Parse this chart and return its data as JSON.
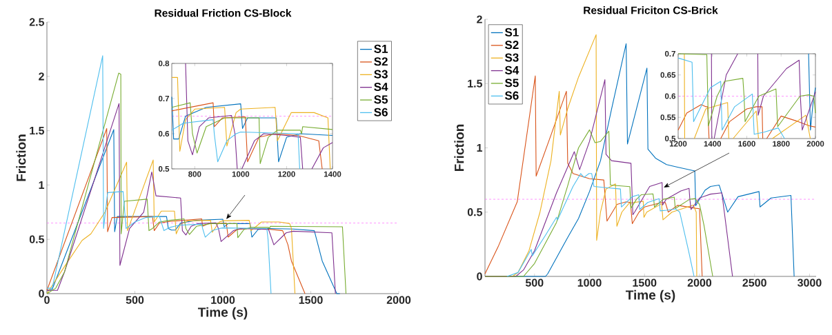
{
  "chart_data": [
    {
      "type": "line",
      "title": "Residual Friction CS-Block",
      "xlabel": "Time (s)",
      "ylabel": "Friction",
      "xlim": [
        0,
        2000
      ],
      "ylim": [
        0,
        2.5
      ],
      "xticks": [
        0,
        500,
        1000,
        1500,
        2000
      ],
      "yticks": [
        0,
        0.5,
        1,
        1.5,
        2,
        2.5
      ],
      "legend": "top right",
      "marker": "none",
      "line_style": "solid",
      "ref_lines": [
        {
          "axis": "y",
          "value": 0.65,
          "color": "#ff66ff",
          "line_style": "dashed"
        }
      ],
      "series": [
        {
          "name": "S1",
          "color": "#0072bd",
          "x": [
            0,
            30,
            380,
            385,
            400,
            680,
            690,
            708,
            730,
            760,
            850,
            1000,
            1008,
            1030,
            1155,
            1165,
            1200,
            1260,
            1400,
            1520,
            1565,
            1648,
            1665
          ],
          "values": [
            0.03,
            0.04,
            1.51,
            0.57,
            0.71,
            0.71,
            0.6,
            0.585,
            0.585,
            0.65,
            0.675,
            0.685,
            0.615,
            0.645,
            0.645,
            0.52,
            0.59,
            0.6,
            0.595,
            0.58,
            0.3,
            0,
            0
          ]
        },
        {
          "name": "S2",
          "color": "#d95319",
          "x": [
            0,
            340,
            345,
            370,
            600,
            610,
            640,
            700,
            880,
            885,
            920,
            1020,
            1030,
            1080,
            1150,
            1250,
            1340,
            1370,
            1390,
            1467
          ],
          "values": [
            0.03,
            1.52,
            0.57,
            0.7,
            0.71,
            0.58,
            0.65,
            0.665,
            0.688,
            0.62,
            0.645,
            0.648,
            0.52,
            0.59,
            0.6,
            0.595,
            0.58,
            0.45,
            0.3,
            0
          ]
        },
        {
          "name": "S3",
          "color": "#edb120",
          "x": [
            0,
            100,
            200,
            250,
            330,
            453,
            458,
            604,
            610,
            650,
            725,
            735,
            760,
            800,
            930,
            940,
            980,
            1000,
            1150,
            1160,
            1220,
            1320,
            1380,
            1390,
            1410
          ],
          "values": [
            0,
            0.25,
            0.49,
            0.55,
            0.75,
            1.21,
            0.58,
            1.23,
            0.66,
            0.76,
            0.76,
            0.55,
            0.64,
            0.67,
            0.675,
            0.565,
            0.66,
            0.67,
            0.675,
            0.58,
            0.66,
            0.66,
            0.645,
            0.6,
            0
          ]
        },
        {
          "name": "S4",
          "color": "#7e2f8e",
          "x": [
            0,
            60,
            100,
            410,
            415,
            470,
            550,
            596,
            620,
            760,
            770,
            790,
            820,
            860,
            960,
            975,
            990,
            1060,
            1100,
            1200,
            1260,
            1290,
            1360,
            1400,
            1620,
            1640
          ],
          "values": [
            0.03,
            0.03,
            0.2,
            1.75,
            0.26,
            0.6,
            0.75,
            1.12,
            0.9,
            0.88,
            0.58,
            0.54,
            0.62,
            0.645,
            0.652,
            0.6,
            0.48,
            0.58,
            0.6,
            0.595,
            0.59,
            0.45,
            0.56,
            0.575,
            0.56,
            0
          ]
        },
        {
          "name": "S5",
          "color": "#77ac30",
          "x": [
            0,
            50,
            100,
            408,
            420,
            422,
            440,
            570,
            580,
            600,
            640,
            700,
            780,
            790,
            810,
            850,
            930,
            1080,
            1085,
            1120,
            1160,
            1260,
            1265,
            1270,
            1680,
            1700
          ],
          "values": [
            0,
            0.05,
            0.2,
            2.03,
            2.02,
            0.55,
            0.85,
            0.87,
            0.58,
            0.6,
            0.66,
            0.675,
            0.688,
            0.6,
            0.545,
            0.62,
            0.645,
            0.645,
            0.515,
            0.59,
            0.61,
            0.61,
            0.6,
            0.62,
            0.615,
            0
          ]
        },
        {
          "name": "S6",
          "color": "#4dbeee",
          "x": [
            0,
            30,
            317,
            322,
            345,
            433,
            450,
            500,
            560,
            640,
            665,
            700,
            750,
            880,
            885,
            900,
            940,
            980,
            1000,
            1250,
            1257,
            1274
          ],
          "values": [
            0.05,
            0.05,
            2.19,
            0.6,
            0.93,
            0.94,
            0.6,
            0.66,
            0.7,
            0.71,
            0.58,
            0.61,
            0.63,
            0.64,
            0.6,
            0.52,
            0.58,
            0.6,
            0.605,
            0.6,
            0.5,
            0
          ]
        }
      ]
    },
    {
      "type": "line",
      "xlim": [
        700,
        1400
      ],
      "ylim": [
        0.5,
        0.8
      ],
      "xticks": [
        800,
        1000,
        1200,
        1400
      ],
      "yticks": [
        0.5,
        0.6,
        0.7,
        0.8
      ],
      "marker": "none",
      "line_style": "solid",
      "ref_lines": [
        {
          "axis": "y",
          "value": 0.65,
          "color": "#ff66ff",
          "line_style": "dashed"
        }
      ],
      "series": [
        {
          "color": "#0072bd",
          "x": [
            700,
            708,
            730,
            760,
            850,
            1000,
            1008,
            1030,
            1155,
            1165,
            1200,
            1260,
            1400
          ],
          "values": [
            0.705,
            0.585,
            0.585,
            0.65,
            0.675,
            0.685,
            0.615,
            0.645,
            0.645,
            0.52,
            0.59,
            0.6,
            0.595
          ]
        },
        {
          "color": "#d95319",
          "x": [
            700,
            880,
            885,
            920,
            1020,
            1030,
            1080,
            1150,
            1250,
            1340,
            1355
          ],
          "values": [
            0.665,
            0.688,
            0.62,
            0.645,
            0.648,
            0.52,
            0.59,
            0.6,
            0.595,
            0.58,
            0.5
          ]
        },
        {
          "color": "#edb120",
          "x": [
            700,
            725,
            735,
            760,
            800,
            930,
            940,
            980,
            1000,
            1150,
            1160,
            1220,
            1320,
            1380,
            1390
          ],
          "values": [
            0.76,
            0.76,
            0.55,
            0.64,
            0.67,
            0.675,
            0.565,
            0.66,
            0.67,
            0.675,
            0.58,
            0.66,
            0.66,
            0.645,
            0.5
          ]
        },
        {
          "color": "#7e2f8e",
          "x": [
            760,
            770,
            780,
            790,
            820,
            860,
            960,
            975,
            985,
            995,
            1005,
            1060,
            1100,
            1200,
            1260,
            1270,
            1290,
            1310,
            1360,
            1400
          ],
          "values": [
            0.8,
            0.58,
            0.56,
            0.54,
            0.62,
            0.645,
            0.652,
            0.6,
            0.5,
            null,
            0.5,
            0.58,
            0.6,
            0.595,
            0.59,
            0.5,
            null,
            0.5,
            0.56,
            0.575
          ]
        },
        {
          "color": "#77ac30",
          "x": [
            700,
            780,
            790,
            810,
            850,
            930,
            1080,
            1085,
            1120,
            1160,
            1260,
            1265,
            1270,
            1400
          ],
          "values": [
            0.675,
            0.688,
            0.6,
            0.545,
            0.62,
            0.645,
            0.645,
            0.515,
            0.59,
            0.61,
            0.61,
            0.6,
            0.62,
            0.612
          ]
        },
        {
          "color": "#4dbeee",
          "x": [
            700,
            750,
            880,
            885,
            900,
            940,
            980,
            1000,
            1250,
            1257
          ],
          "values": [
            0.61,
            0.63,
            0.64,
            0.6,
            0.52,
            0.58,
            0.6,
            0.605,
            0.6,
            0.5
          ]
        }
      ]
    },
    {
      "type": "line",
      "title": "Residual Friciton CS-Brick",
      "xlabel": "Time (s)",
      "ylabel": "Friction",
      "xlim": [
        50,
        3060
      ],
      "ylim": [
        0,
        2
      ],
      "xticks": [
        500,
        1000,
        1500,
        2000,
        2500,
        3000
      ],
      "yticks": [
        0,
        0.5,
        1,
        1.5,
        2
      ],
      "legend": "top left",
      "marker": "none",
      "line_style": "solid",
      "ref_lines": [
        {
          "axis": "y",
          "value": 0.6,
          "color": "#ff66ff",
          "line_style": "dashed"
        }
      ],
      "series": [
        {
          "name": "S1",
          "color": "#0072bd",
          "x": [
            50,
            600,
            620,
            800,
            900,
            1000,
            1100,
            1200,
            1333,
            1345,
            1522,
            1531,
            1600,
            1700,
            1800,
            1957,
            1965,
            2000,
            2050,
            2100,
            2179,
            2256,
            2350,
            2541,
            2550,
            2650,
            2831,
            2860
          ],
          "values": [
            0,
            0,
            0.02,
            0.3,
            0.45,
            0.66,
            0.9,
            1.3,
            1.81,
            1.03,
            1.62,
            0.99,
            0.92,
            0.87,
            0.85,
            0.82,
            0.55,
            0.6,
            0.67,
            0.7,
            0.71,
            0.5,
            0.62,
            0.66,
            0.54,
            0.61,
            0.63,
            0
          ]
        },
        {
          "name": "S2",
          "color": "#d95319",
          "x": [
            50,
            169,
            343,
            507,
            515,
            650,
            790,
            802,
            850,
            1000,
            1130,
            1159,
            1250,
            1334,
            1372,
            1389,
            1450,
            1500,
            1655,
            1689,
            1716,
            1800,
            1964,
            2000,
            2024
          ],
          "values": [
            0.02,
            0.23,
            0.58,
            1.56,
            0.78,
            1.1,
            1.44,
            0.88,
            0.8,
            0.76,
            0.75,
            0.43,
            0.56,
            0.58,
            0.575,
            0.41,
            0.5,
            0.54,
            0.575,
            0.575,
            0.5,
            0.553,
            0.53,
            0.527,
            0
          ]
        },
        {
          "name": "S3",
          "color": "#edb120",
          "x": [
            50,
            300,
            350,
            450,
            550,
            650,
            725,
            735,
            800,
            900,
            1060,
            1065,
            1100,
            1150,
            1236,
            1249,
            1294,
            1361,
            1488,
            1495,
            1520,
            1655,
            1668,
            1749,
            1944,
            1970,
            1975
          ],
          "values": [
            0,
            0,
            0.03,
            0.2,
            0.5,
            0.9,
            1.44,
            1.1,
            1.3,
            1.55,
            1.88,
            0.28,
            0.5,
            0.68,
            0.72,
            0.39,
            0.5,
            0.57,
            0.585,
            0.46,
            0.5,
            0.565,
            0.44,
            0.5,
            0.555,
            0.5,
            0
          ]
        },
        {
          "name": "S4",
          "color": "#7e2f8e",
          "x": [
            50,
            330,
            400,
            500,
            700,
            862,
            910,
            1000,
            1140,
            1150,
            1200,
            1377,
            1394,
            1410,
            1547,
            1660,
            1664,
            1697,
            1831,
            1905,
            1912,
            1923,
            2000,
            2100,
            2203,
            2300
          ],
          "values": [
            0,
            0,
            0.05,
            0.2,
            0.65,
            0.97,
            0.83,
            1.05,
            1.53,
            0.95,
            0.9,
            0.88,
            0.48,
            0.5,
            0.7,
            0.73,
            0.555,
            0.6,
            0.665,
            0.685,
            0.6,
            0.52,
            0.61,
            0.64,
            0.65,
            0
          ]
        },
        {
          "name": "S5",
          "color": "#77ac30",
          "x": [
            50,
            400,
            500,
            700,
            800,
            900,
            1000,
            1050,
            1100,
            1176,
            1190,
            1367,
            1376,
            1427,
            1470,
            1577,
            1584,
            1590,
            1670,
            1770,
            1780,
            1910,
            1960,
            2000,
            2040,
            2120
          ],
          "values": [
            0,
            0,
            0.1,
            0.42,
            0.7,
            1.0,
            1.14,
            1.04,
            1.05,
            1.13,
            0.71,
            0.698,
            0.53,
            0.6,
            0.635,
            0.642,
            0.6,
            0.54,
            0.6,
            0.617,
            0.528,
            0.6,
            0.605,
            0.56,
            0.4,
            0
          ]
        },
        {
          "name": "S6",
          "color": "#4dbeee",
          "x": [
            250,
            350,
            470,
            480,
            600,
            700,
            710,
            850,
            920,
            950,
            995,
            1020,
            1040,
            1150,
            1281,
            1290,
            1388,
            1448,
            1456,
            1529,
            1632,
            1643,
            1700,
            1783,
            1820,
            1900,
            1950
          ],
          "values": [
            0,
            0.03,
            0.21,
            0.16,
            0.32,
            0.46,
            0.44,
            0.7,
            0.8,
            0.77,
            0.8,
            0.8,
            0.7,
            0.69,
            0.68,
            0.54,
            0.62,
            0.635,
            0.52,
            0.575,
            0.605,
            0.51,
            0.515,
            0.525,
            0.5,
            0.2,
            0
          ]
        }
      ]
    },
    {
      "type": "line",
      "xlim": [
        1200,
        2000
      ],
      "ylim": [
        0.5,
        0.7
      ],
      "xticks": [
        1200,
        1400,
        1600,
        1800,
        2000
      ],
      "yticks": [
        0.5,
        0.55,
        0.6,
        0.65,
        0.7
      ],
      "marker": "none",
      "line_style": "solid",
      "ref_lines": [
        {
          "axis": "y",
          "value": 0.6,
          "color": "#ff66ff",
          "line_style": "dashed"
        }
      ],
      "series": [
        {
          "color": "#0072bd",
          "x": [
            1960,
            1971,
            1985,
            2000
          ],
          "values": [
            0.7,
            0.52,
            0.58,
            0.62
          ]
        },
        {
          "color": "#d95319",
          "x": [
            1200,
            1250,
            1334,
            1361,
            1372,
            1380,
            1414,
            1448,
            1500,
            1600,
            1655,
            1689,
            1693,
            1705,
            1716,
            1800,
            1900,
            1964,
            2000
          ],
          "values": [
            0.52,
            0.56,
            0.58,
            0.575,
            0.575,
            0.5,
            null,
            0.5,
            0.54,
            0.57,
            0.575,
            0.575,
            0.5,
            null,
            0.5,
            0.553,
            0.54,
            0.53,
            0.527
          ]
        },
        {
          "color": "#edb120",
          "x": [
            1236,
            1238,
            1266,
            1294,
            1361,
            1488,
            1495,
            1508,
            1520,
            1655,
            1668,
            1700,
            1749,
            1944,
            1970
          ],
          "values": [
            0.7,
            0.5,
            null,
            0.5,
            0.57,
            0.585,
            0.5,
            null,
            0.5,
            0.565,
            0.5,
            null,
            0.5,
            0.555,
            0.5
          ]
        },
        {
          "color": "#7e2f8e",
          "x": [
            1394,
            1396,
            1403,
            1410,
            1480,
            1547,
            1600,
            1664,
            1666,
            1697,
            1831,
            1905,
            1912,
            1923,
            2000
          ],
          "values": [
            0.7,
            0.5,
            null,
            0.5,
            0.65,
            0.7,
            null,
            0.7,
            0.555,
            0.6,
            0.665,
            0.685,
            0.6,
            0.52,
            0.61
          ]
        },
        {
          "color": "#77ac30",
          "x": [
            1200,
            1367,
            1376,
            1427,
            1470,
            1577,
            1584,
            1590,
            1670,
            1770,
            1780,
            1910,
            1960,
            1990,
            2000
          ],
          "values": [
            0.7,
            0.698,
            0.53,
            0.6,
            0.635,
            0.642,
            0.6,
            0.54,
            0.6,
            0.617,
            0.528,
            0.6,
            0.603,
            0.6,
            0.56
          ]
        },
        {
          "color": "#4dbeee",
          "x": [
            1200,
            1281,
            1290,
            1388,
            1448,
            1456,
            1529,
            1632,
            1643,
            1700,
            1783,
            1820
          ],
          "values": [
            0.69,
            0.68,
            0.54,
            0.62,
            0.635,
            0.52,
            0.575,
            0.605,
            0.51,
            0.515,
            0.525,
            0.5
          ]
        }
      ]
    }
  ]
}
